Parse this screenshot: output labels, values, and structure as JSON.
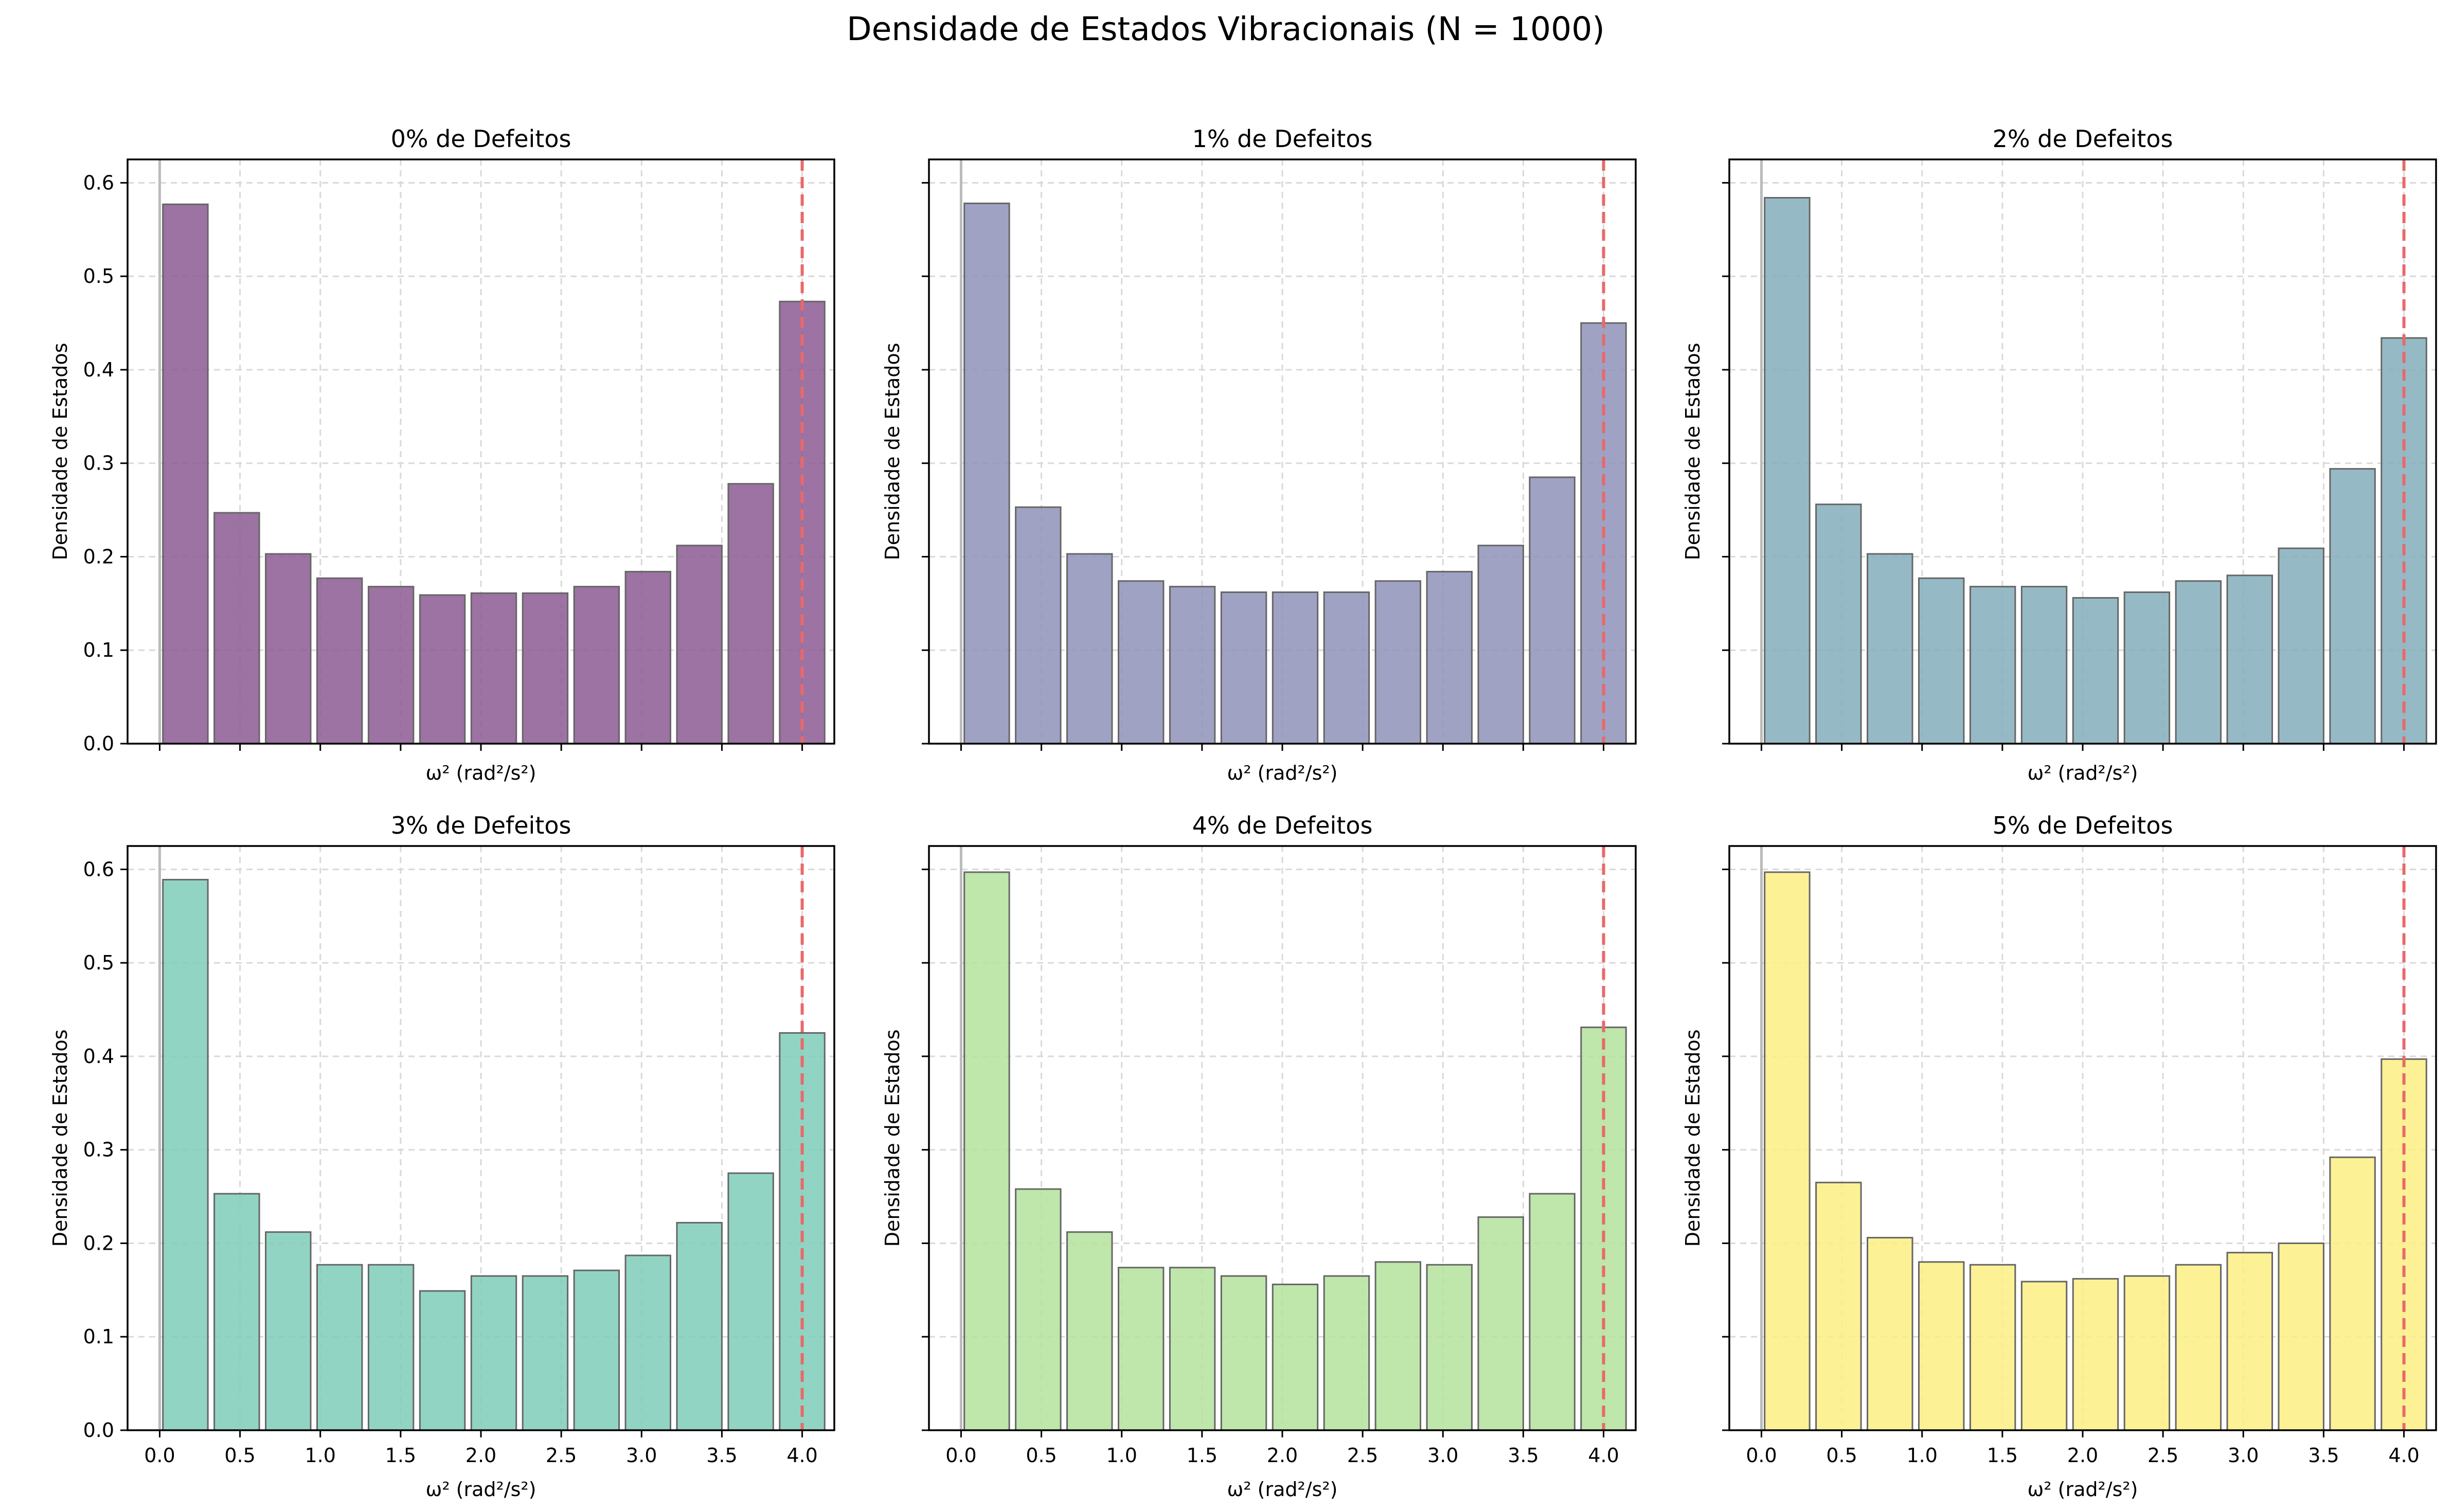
{
  "figure_title": "Densidade de Estados Vibracionais (N = 1000)",
  "chart_data": [
    {
      "type": "bar",
      "title": "0% de Defeitos",
      "xlabel": "ω² (rad²/s²)",
      "ylabel": "Densidade de Estados",
      "bin_centers": [
        0.16,
        0.48,
        0.8,
        1.12,
        1.44,
        1.76,
        2.08,
        2.4,
        2.72,
        3.04,
        3.36,
        3.68,
        4.0
      ],
      "values": [
        0.577,
        0.247,
        0.203,
        0.177,
        0.168,
        0.159,
        0.161,
        0.161,
        0.168,
        0.184,
        0.212,
        0.278,
        0.473
      ],
      "bar_color": "#8b5a92",
      "xlim": [
        -0.2,
        4.2
      ],
      "ylim": [
        0,
        0.625
      ],
      "xticks": [
        0.0,
        0.5,
        1.0,
        1.5,
        2.0,
        2.5,
        3.0,
        3.5,
        4.0
      ],
      "yticks": [
        0.0,
        0.1,
        0.2,
        0.3,
        0.4,
        0.5,
        0.6
      ],
      "show_xtick_labels": false,
      "show_ytick_labels": true,
      "vlines": [
        {
          "x": 0.0,
          "color": "#bbbbbb",
          "style": "solid"
        },
        {
          "x": 4.0,
          "color": "#e8696b",
          "style": "dashed"
        }
      ],
      "grid": true
    },
    {
      "type": "bar",
      "title": "1% de Defeitos",
      "xlabel": "ω² (rad²/s²)",
      "ylabel": "Densidade de Estados",
      "bin_centers": [
        0.16,
        0.48,
        0.8,
        1.12,
        1.44,
        1.76,
        2.08,
        2.4,
        2.72,
        3.04,
        3.36,
        3.68,
        4.0
      ],
      "values": [
        0.578,
        0.253,
        0.203,
        0.174,
        0.168,
        0.162,
        0.162,
        0.162,
        0.174,
        0.184,
        0.212,
        0.285,
        0.45
      ],
      "bar_color": "#8f92b8",
      "xlim": [
        -0.2,
        4.2
      ],
      "ylim": [
        0,
        0.625
      ],
      "xticks": [
        0.0,
        0.5,
        1.0,
        1.5,
        2.0,
        2.5,
        3.0,
        3.5,
        4.0
      ],
      "yticks": [
        0.0,
        0.1,
        0.2,
        0.3,
        0.4,
        0.5,
        0.6
      ],
      "show_xtick_labels": false,
      "show_ytick_labels": false,
      "vlines": [
        {
          "x": 0.0,
          "color": "#bbbbbb",
          "style": "solid"
        },
        {
          "x": 4.0,
          "color": "#e8696b",
          "style": "dashed"
        }
      ],
      "grid": true
    },
    {
      "type": "bar",
      "title": "2% de Defeitos",
      "xlabel": "ω² (rad²/s²)",
      "ylabel": "Densidade de Estados",
      "bin_centers": [
        0.16,
        0.48,
        0.8,
        1.12,
        1.44,
        1.76,
        2.08,
        2.4,
        2.72,
        3.04,
        3.36,
        3.68,
        4.0
      ],
      "values": [
        0.584,
        0.256,
        0.203,
        0.177,
        0.168,
        0.168,
        0.156,
        0.162,
        0.174,
        0.18,
        0.209,
        0.294,
        0.434
      ],
      "bar_color": "#84aebb",
      "xlim": [
        -0.2,
        4.2
      ],
      "ylim": [
        0,
        0.625
      ],
      "xticks": [
        0.0,
        0.5,
        1.0,
        1.5,
        2.0,
        2.5,
        3.0,
        3.5,
        4.0
      ],
      "yticks": [
        0.0,
        0.1,
        0.2,
        0.3,
        0.4,
        0.5,
        0.6
      ],
      "show_xtick_labels": false,
      "show_ytick_labels": false,
      "vlines": [
        {
          "x": 0.0,
          "color": "#bbbbbb",
          "style": "solid"
        },
        {
          "x": 4.0,
          "color": "#e8696b",
          "style": "dashed"
        }
      ],
      "grid": true
    },
    {
      "type": "bar",
      "title": "3% de Defeitos",
      "xlabel": "ω² (rad²/s²)",
      "ylabel": "Densidade de Estados",
      "bin_centers": [
        0.16,
        0.48,
        0.8,
        1.12,
        1.44,
        1.76,
        2.08,
        2.4,
        2.72,
        3.04,
        3.36,
        3.68,
        4.0
      ],
      "values": [
        0.589,
        0.253,
        0.212,
        0.177,
        0.177,
        0.149,
        0.165,
        0.165,
        0.171,
        0.187,
        0.222,
        0.275,
        0.425
      ],
      "bar_color": "#7fcdb8",
      "xlim": [
        -0.2,
        4.2
      ],
      "ylim": [
        0,
        0.625
      ],
      "xticks": [
        0.0,
        0.5,
        1.0,
        1.5,
        2.0,
        2.5,
        3.0,
        3.5,
        4.0
      ],
      "yticks": [
        0.0,
        0.1,
        0.2,
        0.3,
        0.4,
        0.5,
        0.6
      ],
      "show_xtick_labels": true,
      "show_ytick_labels": true,
      "vlines": [
        {
          "x": 0.0,
          "color": "#bbbbbb",
          "style": "solid"
        },
        {
          "x": 4.0,
          "color": "#e8696b",
          "style": "dashed"
        }
      ],
      "grid": true
    },
    {
      "type": "bar",
      "title": "4% de Defeitos",
      "xlabel": "ω² (rad²/s²)",
      "ylabel": "Densidade de Estados",
      "bin_centers": [
        0.16,
        0.48,
        0.8,
        1.12,
        1.44,
        1.76,
        2.08,
        2.4,
        2.72,
        3.04,
        3.36,
        3.68,
        4.0
      ],
      "values": [
        0.597,
        0.258,
        0.212,
        0.174,
        0.174,
        0.165,
        0.156,
        0.165,
        0.18,
        0.177,
        0.228,
        0.253,
        0.431
      ],
      "bar_color": "#b4e29c",
      "xlim": [
        -0.2,
        4.2
      ],
      "ylim": [
        0,
        0.625
      ],
      "xticks": [
        0.0,
        0.5,
        1.0,
        1.5,
        2.0,
        2.5,
        3.0,
        3.5,
        4.0
      ],
      "yticks": [
        0.0,
        0.1,
        0.2,
        0.3,
        0.4,
        0.5,
        0.6
      ],
      "show_xtick_labels": true,
      "show_ytick_labels": false,
      "vlines": [
        {
          "x": 0.0,
          "color": "#bbbbbb",
          "style": "solid"
        },
        {
          "x": 4.0,
          "color": "#e8696b",
          "style": "dashed"
        }
      ],
      "grid": true
    },
    {
      "type": "bar",
      "title": "5% de Defeitos",
      "xlabel": "ω² (rad²/s²)",
      "ylabel": "Densidade de Estados",
      "bin_centers": [
        0.16,
        0.48,
        0.8,
        1.12,
        1.44,
        1.76,
        2.08,
        2.4,
        2.72,
        3.04,
        3.36,
        3.68,
        4.0
      ],
      "values": [
        0.597,
        0.265,
        0.206,
        0.18,
        0.177,
        0.159,
        0.162,
        0.165,
        0.177,
        0.19,
        0.2,
        0.292,
        0.397
      ],
      "bar_color": "#fbef82",
      "xlim": [
        -0.2,
        4.2
      ],
      "ylim": [
        0,
        0.625
      ],
      "xticks": [
        0.0,
        0.5,
        1.0,
        1.5,
        2.0,
        2.5,
        3.0,
        3.5,
        4.0
      ],
      "yticks": [
        0.0,
        0.1,
        0.2,
        0.3,
        0.4,
        0.5,
        0.6
      ],
      "show_xtick_labels": true,
      "show_ytick_labels": false,
      "vlines": [
        {
          "x": 0.0,
          "color": "#bbbbbb",
          "style": "solid"
        },
        {
          "x": 4.0,
          "color": "#e8696b",
          "style": "dashed"
        }
      ],
      "grid": true
    }
  ]
}
